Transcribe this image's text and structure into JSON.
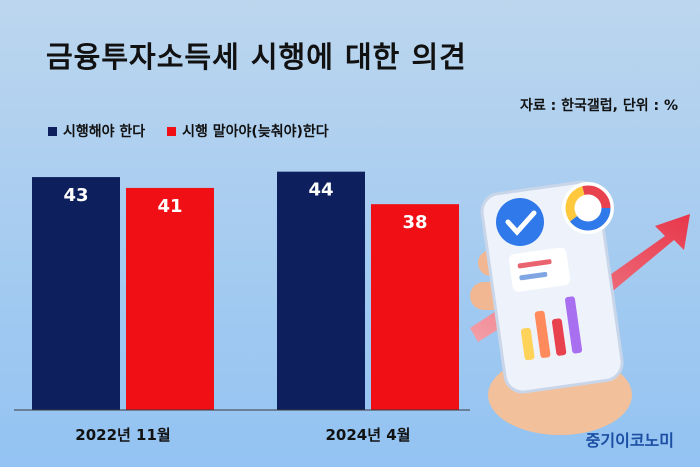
{
  "title": "금융투자소득세 시행에 대한 의견",
  "source": "자료 : 한국갤럽, 단위 : %",
  "brand": "중기이코노미",
  "colors": {
    "series1": "#0d1f5c",
    "series2": "#ef0f14",
    "axis": "#3a3a3a"
  },
  "chart_data": {
    "type": "bar",
    "categories": [
      "2022년 11월",
      "2024년 4월"
    ],
    "series": [
      {
        "name": "시행해야 한다",
        "values": [
          43,
          44
        ]
      },
      {
        "name": "시행 말아야(늦춰야)한다",
        "values": [
          41,
          38
        ]
      }
    ],
    "ylim": [
      0,
      48
    ],
    "legend": "top-left",
    "grid": false
  }
}
